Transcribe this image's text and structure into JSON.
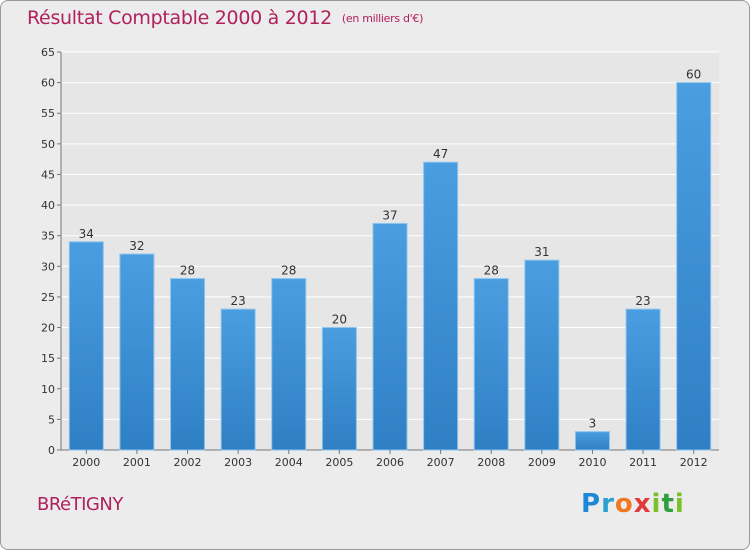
{
  "chart_data": {
    "type": "bar",
    "title": "Résultat Comptable 2000 à 2012",
    "subtitle": "(en milliers d'€)",
    "categories": [
      "2000",
      "2001",
      "2002",
      "2003",
      "2004",
      "2005",
      "2006",
      "2007",
      "2008",
      "2009",
      "2010",
      "2011",
      "2012"
    ],
    "values": [
      34,
      32,
      28,
      23,
      28,
      20,
      37,
      47,
      28,
      31,
      3,
      23,
      60
    ],
    "ylim": [
      0,
      65
    ],
    "yticks": [
      0,
      5,
      10,
      15,
      20,
      25,
      30,
      35,
      40,
      45,
      50,
      55,
      60,
      65
    ],
    "grid": true,
    "xlabel": "",
    "ylabel": ""
  },
  "commune": "BRéTIGNY",
  "logo": {
    "parts": [
      "P",
      "r",
      "o",
      "x",
      "i",
      "t",
      "i"
    ]
  },
  "colors": {
    "bar": "#4a9ee0",
    "bar_dark": "#2f7fc4",
    "title": "#b0205a",
    "grid": "#ffffff",
    "background": "#ececec"
  }
}
